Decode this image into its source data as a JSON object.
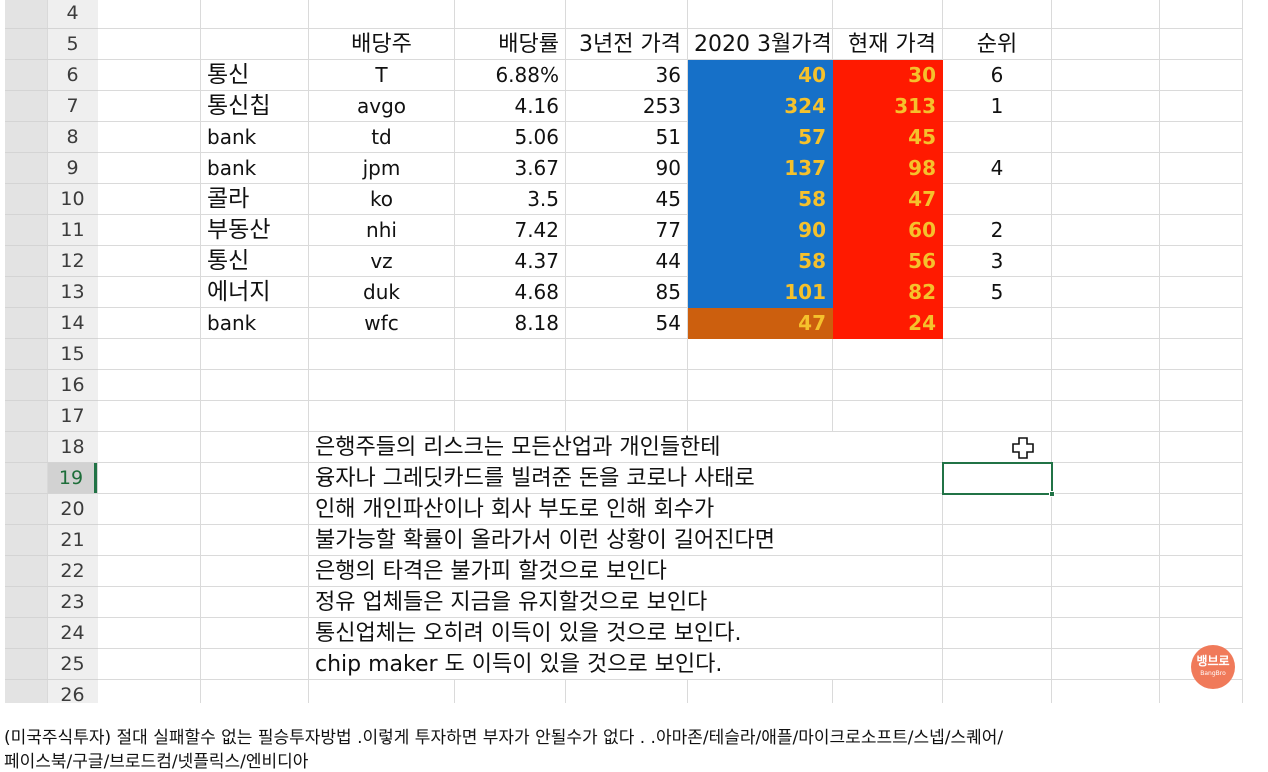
{
  "sheet": {
    "rows": [
      {
        "num": "4",
        "cells": {}
      },
      {
        "num": "5",
        "cells": {
          "B": "배당주",
          "C": "배당률",
          "D": "3년전 가격",
          "E": "2020 3월가격",
          "F": "현재 가격",
          "G": "순위"
        }
      },
      {
        "num": "6",
        "cells": {
          "A": "통신",
          "B": "T",
          "C": "6.88%",
          "D": "36",
          "E": "40",
          "F": "30",
          "G": "6"
        }
      },
      {
        "num": "7",
        "cells": {
          "A": "통신칩",
          "B": "avgo",
          "C": "4.16",
          "D": "253",
          "E": "324",
          "F": "313",
          "G": "1"
        }
      },
      {
        "num": "8",
        "cells": {
          "A": "bank",
          "B": "td",
          "C": "5.06",
          "D": "51",
          "E": "57",
          "F": "45"
        }
      },
      {
        "num": "9",
        "cells": {
          "A": "bank",
          "B": "jpm",
          "C": "3.67",
          "D": "90",
          "E": "137",
          "F": "98",
          "G": "4"
        }
      },
      {
        "num": "10",
        "cells": {
          "A": "콜라",
          "B": "ko",
          "C": "3.5",
          "D": "45",
          "E": "58",
          "F": "47"
        }
      },
      {
        "num": "11",
        "cells": {
          "A": "부동산",
          "B": "nhi",
          "C": "7.42",
          "D": "77",
          "E": "90",
          "F": "60",
          "G": "2"
        }
      },
      {
        "num": "12",
        "cells": {
          "A": "통신",
          "B": "vz",
          "C": "4.37",
          "D": "44",
          "E": "58",
          "F": "56",
          "G": "3"
        }
      },
      {
        "num": "13",
        "cells": {
          "A": "에너지",
          "B": "duk",
          "C": "4.68",
          "D": "85",
          "E": "101",
          "F": "82",
          "G": "5"
        }
      },
      {
        "num": "14",
        "cells": {
          "A": "bank",
          "B": "wfc",
          "C": "8.18",
          "D": "54",
          "E": "47",
          "F": "24"
        }
      },
      {
        "num": "15",
        "cells": {}
      },
      {
        "num": "16",
        "cells": {}
      },
      {
        "num": "17",
        "cells": {}
      },
      {
        "num": "18",
        "cells": {
          "NOTE": "은행주들의 리스크는 모든산업과 개인들한테"
        }
      },
      {
        "num": "19",
        "cells": {
          "NOTE": "융자나 그레딧카드를 빌려준 돈을 코로나 사태로"
        }
      },
      {
        "num": "20",
        "cells": {
          "NOTE": "인해 개인파산이나 회사 부도로 인해 회수가"
        }
      },
      {
        "num": "21",
        "cells": {
          "NOTE": "불가능할 확률이 올라가서 이런 상황이 길어진다면"
        }
      },
      {
        "num": "22",
        "cells": {
          "NOTE": "은행의 타격은 불가피 할것으로 보인다"
        }
      },
      {
        "num": "23",
        "cells": {
          "NOTE": "정유 업체들은 지금을 유지할것으로 보인다"
        }
      },
      {
        "num": "24",
        "cells": {
          "NOTE": "통신업체는 오히려 이득이 있을 것으로 보인다."
        }
      },
      {
        "num": "25",
        "cells": {
          "NOTE": "chip maker 도 이득이 있을 것으로 보인다."
        }
      },
      {
        "num": "26",
        "cells": {}
      }
    ],
    "selected_row": "19",
    "fill_colors": {
      "march_2020_price": "#1670c8",
      "current_price": "#ff1a00",
      "wfc_march_2020_price": "#cc5f0e",
      "highlight_text": "#f5c12c",
      "selection": "#217346"
    },
    "icons": {
      "cursor": "cell-select-cross-cursor-icon",
      "watermark": "bangbro-logo-icon"
    }
  },
  "watermark": {
    "korean": "뱅브로",
    "english": "BangBro"
  },
  "caption": {
    "line1": "(미국주식투자) 절대 실패할수 없는 필승투자방법 .이렇게 투자하면 부자가 안될수가 없다 . .아마존/테슬라/애플/마이크로소프트/스넵/스퀘어/",
    "line2": "페이스북/구글/브로드컴/넷플릭스/엔비디아"
  }
}
